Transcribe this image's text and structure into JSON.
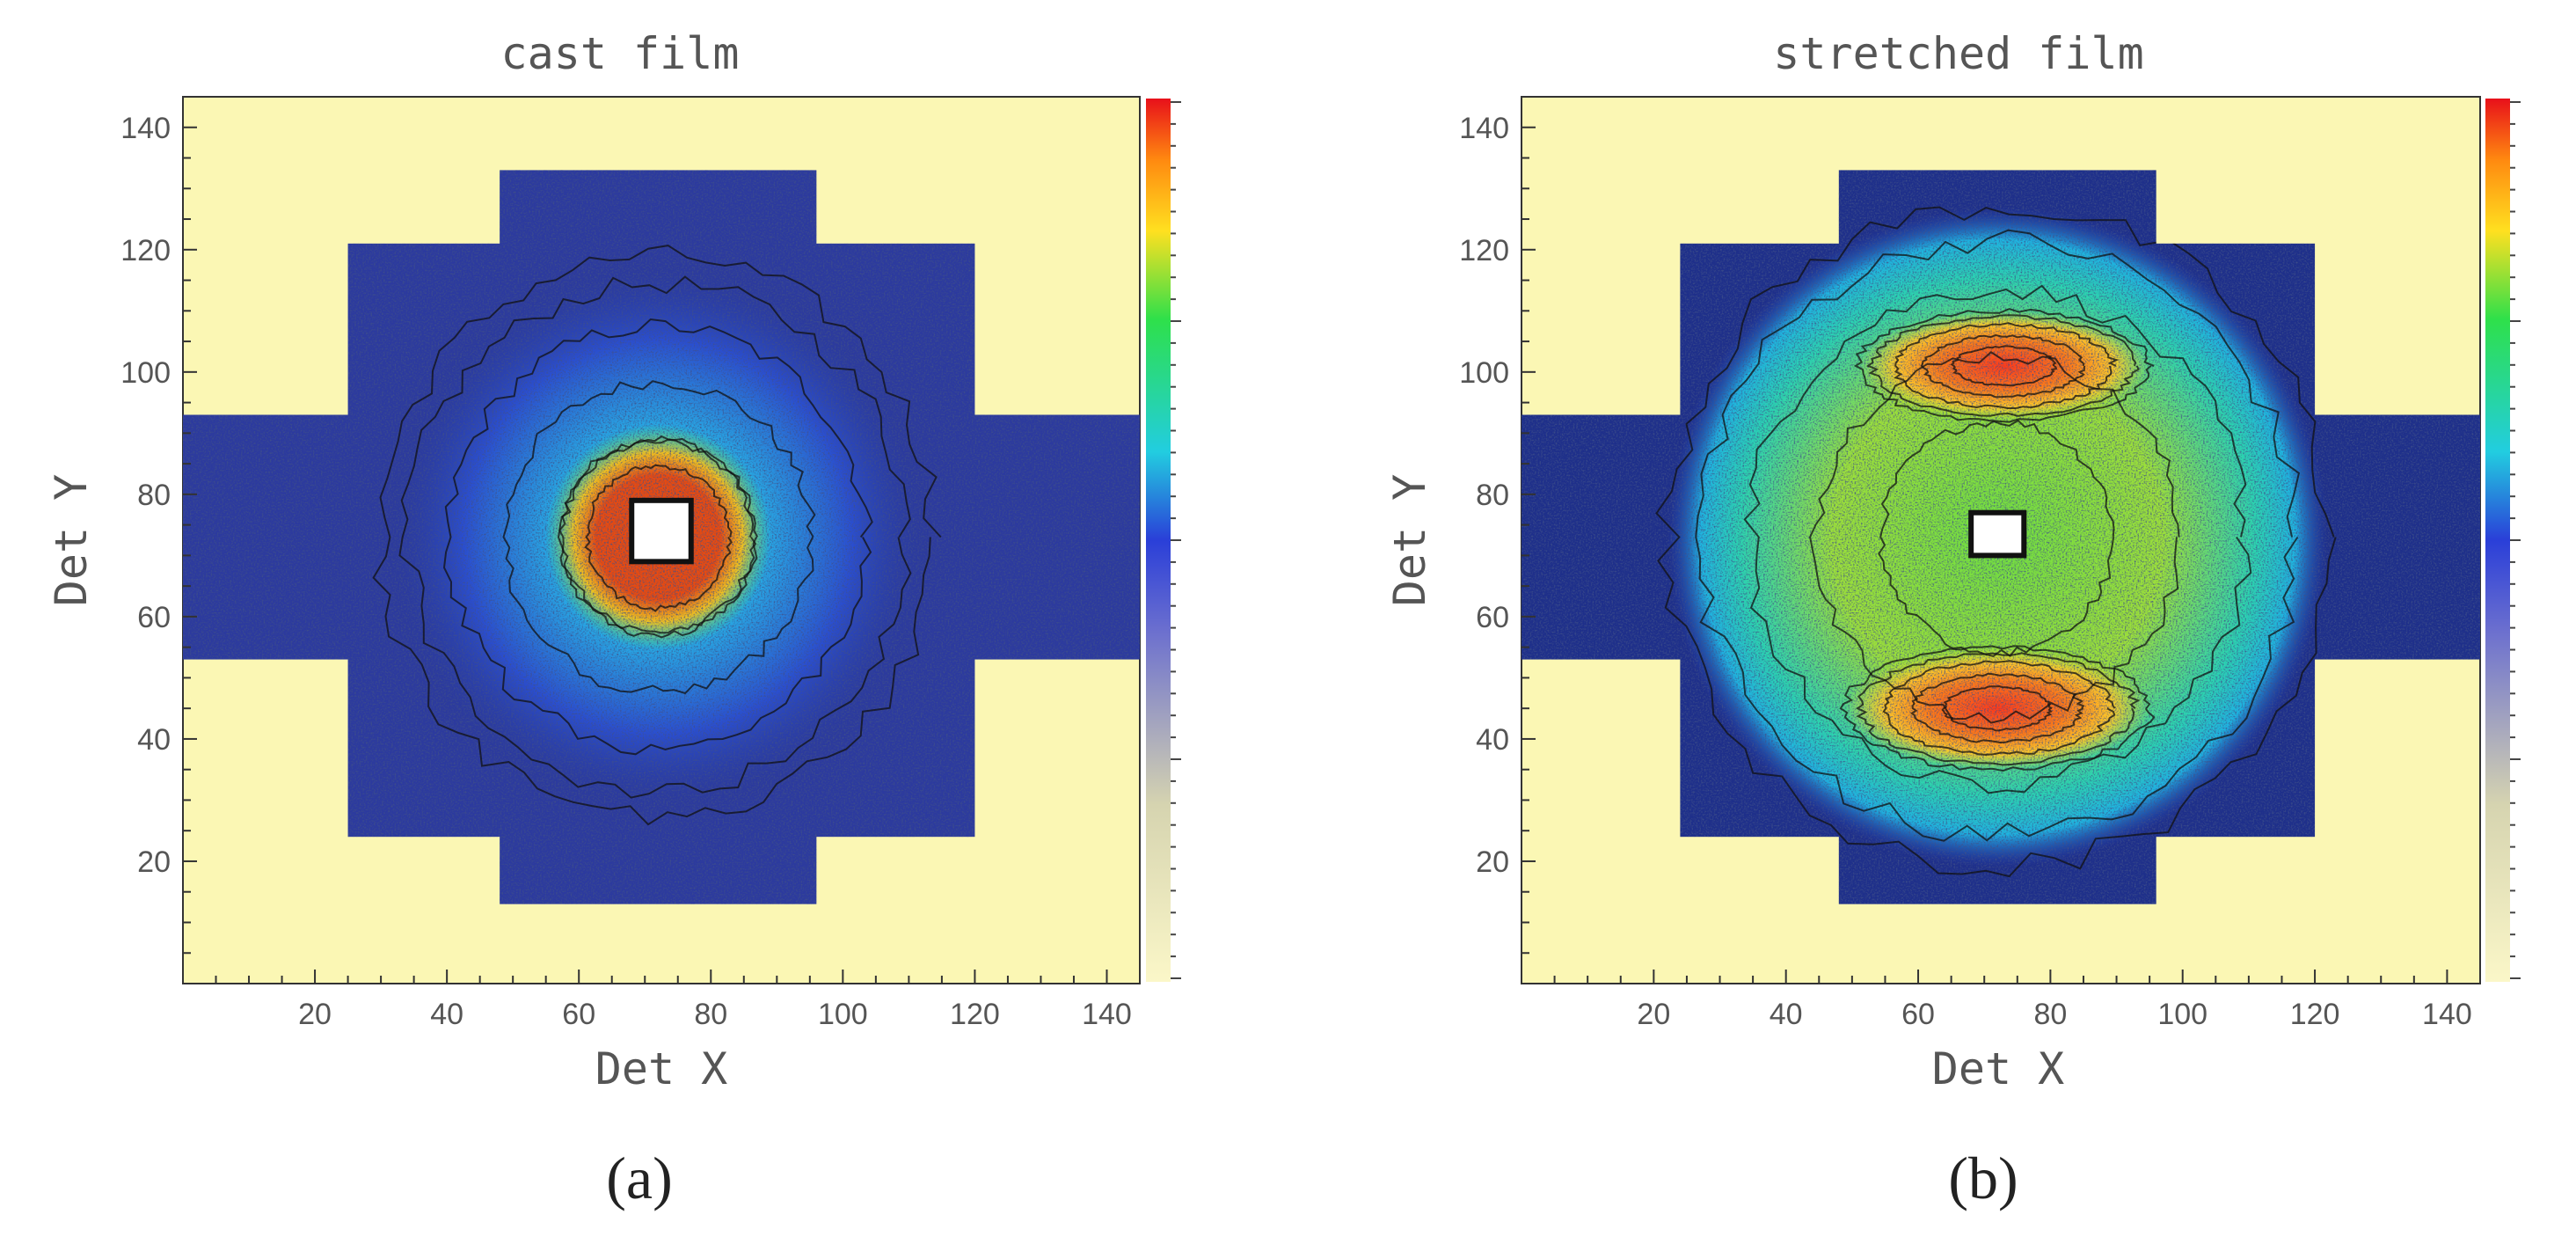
{
  "chart_data": [
    {
      "type": "heatmap",
      "title": "cast film",
      "xlabel": "Det X",
      "ylabel": "Det Y",
      "panel_label": "(a)",
      "xlim": [
        0,
        145
      ],
      "ylim": [
        0,
        145
      ],
      "x_ticks": [
        20,
        40,
        60,
        80,
        100,
        120,
        140
      ],
      "y_ticks": [
        20,
        40,
        60,
        80,
        100,
        120,
        140
      ],
      "colorbar": "rainbow (white to red)",
      "background_color": "#fbf7b4",
      "detector_regions_data": [
        {
          "x": [
            0,
            145
          ],
          "y": [
            53,
            93
          ]
        },
        {
          "x": [
            25,
            120
          ],
          "y": [
            24,
            121
          ]
        },
        {
          "x": [
            48,
            96
          ],
          "y": [
            13,
            133
          ]
        }
      ],
      "beamstop_data": {
        "x": [
          68,
          77
        ],
        "y": [
          69,
          79
        ]
      },
      "features": [
        {
          "pattern": "isotropic_halo",
          "center": [
            72,
            73
          ],
          "radius_x": 42,
          "radius_y": 46,
          "level": 0.35
        },
        {
          "pattern": "hot_ring",
          "center": [
            72,
            73
          ],
          "radius": 9,
          "level": 0.95
        }
      ]
    },
    {
      "type": "heatmap",
      "title": "stretched film",
      "xlabel": "Det X",
      "ylabel": "Det Y",
      "panel_label": "(b)",
      "xlim": [
        0,
        145
      ],
      "ylim": [
        0,
        145
      ],
      "x_ticks": [
        20,
        40,
        60,
        80,
        100,
        120,
        140
      ],
      "y_ticks": [
        20,
        40,
        60,
        80,
        100,
        120,
        140
      ],
      "colorbar": "rainbow (white to red)",
      "background_color": "#fbf7b4",
      "detector_regions_data": [
        {
          "x": [
            0,
            145
          ],
          "y": [
            53,
            93
          ]
        },
        {
          "x": [
            24,
            120
          ],
          "y": [
            24,
            121
          ]
        },
        {
          "x": [
            48,
            96
          ],
          "y": [
            13,
            133
          ]
        }
      ],
      "beamstop_data": {
        "x": [
          68,
          76
        ],
        "y": [
          70,
          77
        ]
      },
      "features": [
        {
          "pattern": "elliptical_halo",
          "center": [
            72,
            73
          ],
          "radius_x": 50,
          "radius_y": 54,
          "level": 0.45
        },
        {
          "pattern": "equatorial_arc",
          "center": [
            73,
            101
          ],
          "radius_x": 22,
          "radius_y": 9,
          "level": 0.95
        },
        {
          "pattern": "equatorial_arc",
          "center": [
            72,
            45
          ],
          "radius_x": 23,
          "radius_y": 10,
          "level": 0.95
        }
      ]
    }
  ]
}
